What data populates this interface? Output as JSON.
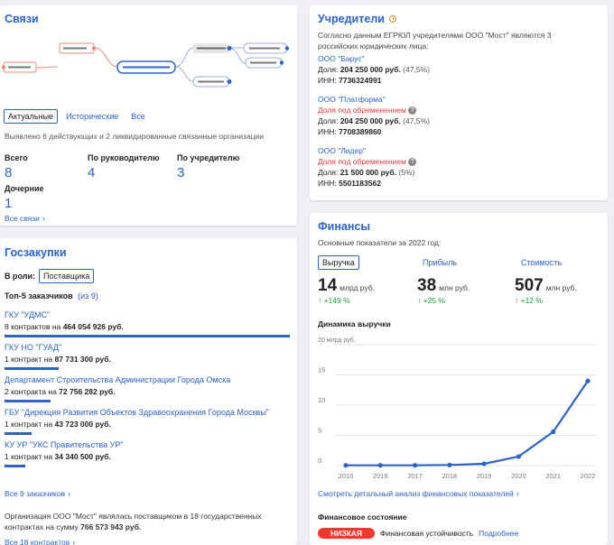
{
  "links": {
    "title": "Связи",
    "tabs": [
      "Актуальные",
      "Исторические",
      "Все"
    ],
    "summary": "Выявлено 6 действующих и 2 ликвидированные связанные организации",
    "stats": [
      {
        "label": "Всего",
        "value": "8"
      },
      {
        "label": "По руководителю",
        "value": "4"
      },
      {
        "label": "По учредителю",
        "value": "3"
      },
      {
        "label": "Дочерние",
        "value": "1"
      }
    ],
    "all_link": "Все связи"
  },
  "founders": {
    "title": "Учредители",
    "intro": "Согласно данным ЕГРЮЛ учредителями ООО \"Мост\" являются 3 российских юридических лица:",
    "items": [
      {
        "name": "ООО \"Барус\"",
        "encumbrance": "",
        "share_label": "Доля:",
        "share": "204 250 000 руб.",
        "pct": "(47,5%)",
        "inn_label": "ИНН:",
        "inn": "7736324991"
      },
      {
        "name": "ООО \"Платформа\"",
        "encumbrance": "Доля под обременением",
        "share_label": "Доля:",
        "share": "204 250 000 руб.",
        "pct": "(47,5%)",
        "inn_label": "ИНН:",
        "inn": "7708389860"
      },
      {
        "name": "ООО \"Лидер\"",
        "encumbrance": "Доля под обременением",
        "share_label": "Доля:",
        "share": "21 500 000 руб.",
        "pct": "(5%)",
        "inn_label": "ИНН:",
        "inn": "5501183562"
      }
    ]
  },
  "procurement": {
    "title": "Госзакупки",
    "role_label": "В роли:",
    "role": "Поставщика",
    "top_label": "Топ-5 заказчиков",
    "top_of": "(из 9)",
    "customers": [
      {
        "name": "ГКУ \"УДМС\"",
        "prefix": "8 контрактов на",
        "sum": "464 054 926 руб.",
        "share": 1.0
      },
      {
        "name": "ГКУ НО \"ГУАД\"",
        "prefix": "1 контракт на",
        "sum": "87 731 300 руб.",
        "share": 0.19
      },
      {
        "name": "Департамент Строительства Администрации Города Омска",
        "prefix": "2 контракта на",
        "sum": "72 756 282 руб.",
        "share": 0.16
      },
      {
        "name": "ГБУ \"Дирекция Развития Объектов Здравоохранения Города Москвы\"",
        "prefix": "1 контракт на",
        "sum": "43 723 000 руб.",
        "share": 0.094
      },
      {
        "name": "КУ УР \"УКС Правительства УР\"",
        "prefix": "1 контракт на",
        "sum": "34 340 500 руб.",
        "share": 0.074
      }
    ],
    "all_customers": "Все 9 заказчиков",
    "footer_text": "Организация ООО \"Мост\" являлась поставщиком в 18 государственных контрактах на сумму",
    "footer_sum": "766 573 943 руб.",
    "all_contracts": "Все 18 контрактов"
  },
  "finance": {
    "title": "Финансы",
    "subtitle": "Основные показатели за 2022 год:",
    "metrics": [
      {
        "label": "Выручка",
        "value": "14",
        "unit": "млрд руб.",
        "change": "↑ +149 %"
      },
      {
        "label": "Прибыль",
        "value": "38",
        "unit": "млн руб.",
        "change": "↑ +25 %"
      },
      {
        "label": "Стоимость",
        "value": "507",
        "unit": "млн руб.",
        "change": "↑ +12 %"
      }
    ],
    "chart_title": "Динамика выручки",
    "detail_link": "Смотреть детальный анализ финансовых показателей",
    "state_title": "Финансовое состояние",
    "state_badge": "НИЗКАЯ",
    "state_text": "Финансовая устойчивость",
    "state_more": "Подробнее"
  },
  "colors": {
    "accent": "#2b63c6",
    "red": "#e23b3b",
    "green": "#1a9b3a",
    "badge": "#f0392b"
  },
  "chart_data": {
    "type": "line",
    "title": "Динамика выручки",
    "ylabel": "",
    "y_unit_label": "20 млрд руб.",
    "x": [
      "2015",
      "2016",
      "2017",
      "2018",
      "2019",
      "2020",
      "2021",
      "2022"
    ],
    "values": [
      0.05,
      0.05,
      0.05,
      0.1,
      0.3,
      1.5,
      5.6,
      14
    ],
    "ylim": [
      0,
      20
    ],
    "yticks": [
      "0",
      "5",
      "10",
      "15"
    ],
    "grid": true
  }
}
